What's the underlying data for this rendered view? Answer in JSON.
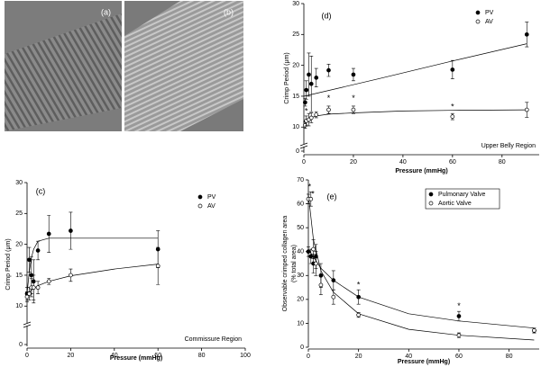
{
  "images": [
    {
      "label": "(a)"
    },
    {
      "label": "(b)"
    }
  ],
  "chart_data": [
    {
      "type": "scatter",
      "panel_label": "(d)",
      "xlabel": "Pressure (mmHg)",
      "ylabel": [
        "Crimp Period (μm)"
      ],
      "region": "Upper Belly Region",
      "xlim": [
        0,
        95
      ],
      "xticks": [
        0,
        20,
        40,
        60,
        80
      ],
      "ylim": [
        0,
        30
      ],
      "y_break": [
        1,
        8
      ],
      "yticks": [
        0,
        10,
        15,
        20,
        25,
        30
      ],
      "legend": "upper right",
      "series": [
        {
          "name": "PV",
          "color": "#000000",
          "marker": "filled",
          "x": [
            0.5,
            1,
            2,
            3,
            5,
            10,
            20,
            60,
            90
          ],
          "values": [
            14,
            16,
            18.5,
            17,
            18,
            19.2,
            18.5,
            19.3,
            25
          ],
          "errors": [
            0.6,
            1.5,
            3.5,
            4.5,
            1.5,
            1,
            1,
            1.5,
            2
          ]
        },
        {
          "name": "AV",
          "color": "#000000",
          "marker": "open",
          "x": [
            0.5,
            1,
            2,
            3,
            5,
            10,
            20,
            60,
            90
          ],
          "values": [
            10.3,
            11,
            11.2,
            11.5,
            12,
            12.8,
            12.8,
            11.7,
            12.8
          ],
          "errors": [
            0.5,
            0.8,
            1,
            0.8,
            0.5,
            0.6,
            0.6,
            0.5,
            1.2
          ]
        }
      ],
      "fits": [
        {
          "x": [
            0,
            30,
            60,
            90
          ],
          "values": [
            15,
            17.8,
            20.7,
            23.5
          ]
        },
        {
          "x": [
            0,
            2,
            5,
            10,
            20,
            40,
            60,
            90
          ],
          "values": [
            10.8,
            11.4,
            11.8,
            12.1,
            12.3,
            12.6,
            12.7,
            12.8
          ]
        }
      ],
      "stars": [
        {
          "text": "*",
          "x": 1,
          "y": 12.5
        },
        {
          "text": "*",
          "x": 10,
          "y": 14.6
        },
        {
          "text": "*",
          "x": 20,
          "y": 14.6
        },
        {
          "text": "*",
          "x": 60,
          "y": 13.2
        }
      ]
    },
    {
      "type": "scatter",
      "panel_label": "(c)",
      "xlabel": "Pressure (mmHg)",
      "ylabel": [
        "Crimp Period (μm)"
      ],
      "region": "Commissure Region",
      "xlim": [
        0,
        100
      ],
      "xticks": [
        0,
        20,
        40,
        60,
        80,
        100
      ],
      "ylim": [
        0,
        30
      ],
      "y_break": [
        1,
        8
      ],
      "yticks": [
        0,
        10,
        15,
        20,
        25,
        30
      ],
      "legend": "upper right",
      "series": [
        {
          "name": "PV",
          "color": "#000000",
          "marker": "filled",
          "x": [
            0,
            1,
            2,
            3,
            5,
            10,
            20,
            60
          ],
          "values": [
            12,
            17.5,
            15,
            14,
            19,
            21.7,
            22.2,
            19.2
          ],
          "errors": [
            1,
            2,
            3,
            3.5,
            1.5,
            3,
            3,
            3
          ]
        },
        {
          "name": "AV",
          "color": "#000000",
          "marker": "open",
          "x": [
            0,
            1,
            2,
            3,
            5,
            10,
            20,
            60
          ],
          "values": [
            11.5,
            12,
            13,
            13,
            13,
            14,
            15,
            16.5
          ],
          "errors": [
            0.8,
            1,
            1.5,
            2,
            1,
            0.5,
            1,
            3
          ]
        }
      ],
      "fits": [
        {
          "x": [
            0,
            1,
            2,
            3,
            5,
            10,
            20,
            60
          ],
          "values": [
            12,
            15.5,
            17.8,
            19.2,
            20.5,
            21,
            21,
            21
          ]
        },
        {
          "x": [
            0,
            2,
            5,
            10,
            20,
            40,
            60
          ],
          "values": [
            11.8,
            12.6,
            13.3,
            14,
            14.9,
            16,
            16.8
          ]
        }
      ],
      "stars": []
    },
    {
      "type": "scatter",
      "panel_label": "(e)",
      "xlabel": "Pressure (mmHg)",
      "ylabel": [
        "Observable crimped collagen area",
        "(% total area)"
      ],
      "region": null,
      "xlim": [
        0,
        92
      ],
      "xticks": [
        0,
        20,
        40,
        60,
        80
      ],
      "ylim": [
        0,
        70
      ],
      "y_break": null,
      "yticks": [
        0,
        10,
        20,
        30,
        40,
        50,
        60,
        70
      ],
      "legend": "upper right",
      "series": [
        {
          "name": "Pulmonary Valve",
          "color": "#000000",
          "marker": "filled",
          "x": [
            0,
            1,
            2,
            3,
            5,
            10,
            20,
            60,
            90
          ],
          "values": [
            40,
            38,
            35,
            38,
            30,
            28,
            21,
            13,
            7
          ],
          "errors": [
            2,
            3,
            4,
            5,
            5,
            4,
            3,
            2,
            1
          ]
        },
        {
          "name": "Aortic Valve",
          "color": "#000000",
          "marker": "open",
          "x": [
            0,
            1,
            2,
            3,
            5,
            10,
            20,
            60,
            90
          ],
          "values": [
            62,
            62,
            41,
            35,
            26,
            21,
            13.5,
            5,
            7
          ],
          "errors": [
            2,
            3,
            4,
            5,
            4,
            3,
            1,
            1,
            1
          ]
        }
      ],
      "fits": [
        {
          "x": [
            0,
            5,
            10,
            20,
            40,
            60,
            90
          ],
          "values": [
            41,
            33,
            28,
            21,
            14,
            11,
            8
          ]
        },
        {
          "x": [
            0,
            2,
            5,
            10,
            20,
            40,
            60,
            90
          ],
          "values": [
            64,
            45,
            32,
            23,
            14,
            7.5,
            5,
            3
          ]
        }
      ],
      "stars": [
        {
          "text": "*",
          "x": 0.5,
          "y": 67
        },
        {
          "text": "*",
          "x": 1.8,
          "y": 64
        },
        {
          "text": "*",
          "x": 20,
          "y": 26
        },
        {
          "text": "*",
          "x": 60,
          "y": 17
        }
      ]
    }
  ]
}
